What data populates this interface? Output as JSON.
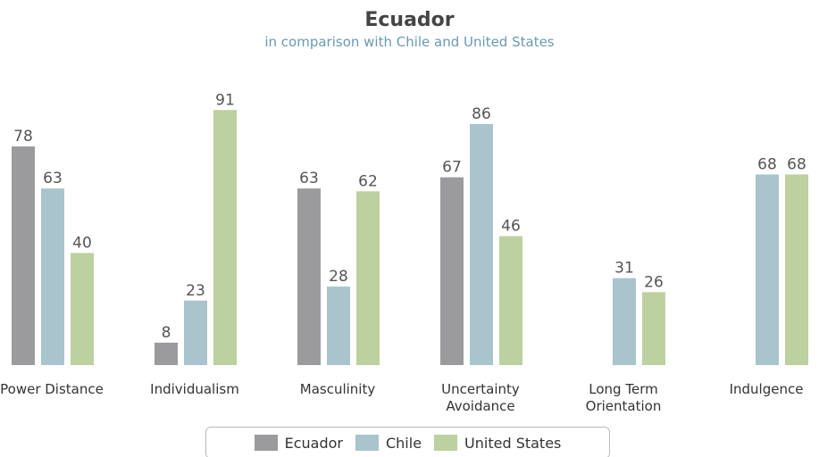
{
  "chart_data": {
    "type": "bar",
    "title": "Ecuador",
    "subtitle": "in comparison with Chile and United States",
    "categories": [
      "Power Distance",
      "Individualism",
      "Masculinity",
      "Uncertainty Avoidance",
      "Long Term Orientation",
      "Indulgence"
    ],
    "series": [
      {
        "name": "Ecuador",
        "color": "#9b9a9c",
        "values": [
          78,
          8,
          63,
          67,
          null,
          null
        ]
      },
      {
        "name": "Chile",
        "color": "#a9c4cc",
        "values": [
          63,
          23,
          28,
          86,
          31,
          68
        ]
      },
      {
        "name": "United States",
        "color": "#bdd09f",
        "values": [
          40,
          91,
          62,
          46,
          26,
          68
        ]
      }
    ],
    "ylim": [
      0,
      100
    ],
    "legend": "bottom"
  }
}
